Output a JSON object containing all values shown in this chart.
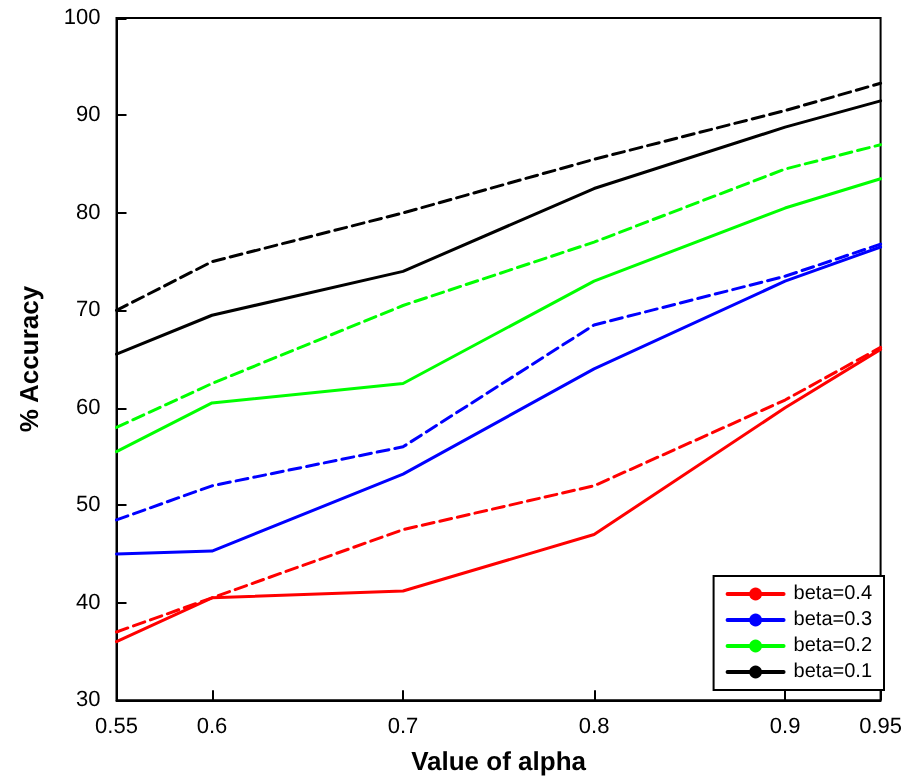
{
  "chart_data": {
    "type": "line",
    "xlabel": "Value of alpha",
    "ylabel": "% Accuracy",
    "x": [
      0.55,
      0.6,
      0.7,
      0.8,
      0.9,
      0.95
    ],
    "xlim": [
      0.55,
      0.95
    ],
    "xticks": [
      0.55,
      0.6,
      0.7,
      0.8,
      0.9,
      0.95
    ],
    "ylim": [
      30,
      100
    ],
    "yticks": [
      30,
      40,
      50,
      60,
      70,
      80,
      90,
      100
    ],
    "grid": false,
    "legend": "bottom right",
    "marker": "none",
    "series": [
      {
        "name": "beta=0.4",
        "color": "#ff0000",
        "line_style": "solid",
        "values": [
          36,
          40.5,
          41.2,
          47,
          60,
          66
        ]
      },
      {
        "name": "beta=0.3",
        "color": "#0000ff",
        "line_style": "solid",
        "values": [
          45,
          45.3,
          53.2,
          64,
          73,
          76.5
        ]
      },
      {
        "name": "beta=0.2",
        "color": "#00ff00",
        "line_style": "solid",
        "values": [
          55.5,
          60.5,
          62.5,
          73,
          80.5,
          83.5
        ]
      },
      {
        "name": "beta=0.1",
        "color": "#000000",
        "line_style": "solid",
        "values": [
          65.5,
          69.5,
          74,
          82.5,
          88.8,
          91.5
        ]
      },
      {
        "color": "#ff0000",
        "line_style": "dashed",
        "values": [
          37,
          40.5,
          47.5,
          52,
          60.8,
          66.2
        ]
      },
      {
        "color": "#0000ff",
        "line_style": "dashed",
        "values": [
          48.5,
          52,
          56,
          68.5,
          73.5,
          76.8
        ]
      },
      {
        "color": "#00ff00",
        "line_style": "dashed",
        "values": [
          58,
          62.5,
          70.5,
          77,
          84.5,
          87
        ]
      },
      {
        "color": "#000000",
        "line_style": "dashed",
        "values": [
          70,
          75,
          80,
          85.5,
          90.5,
          93.3
        ]
      }
    ]
  }
}
